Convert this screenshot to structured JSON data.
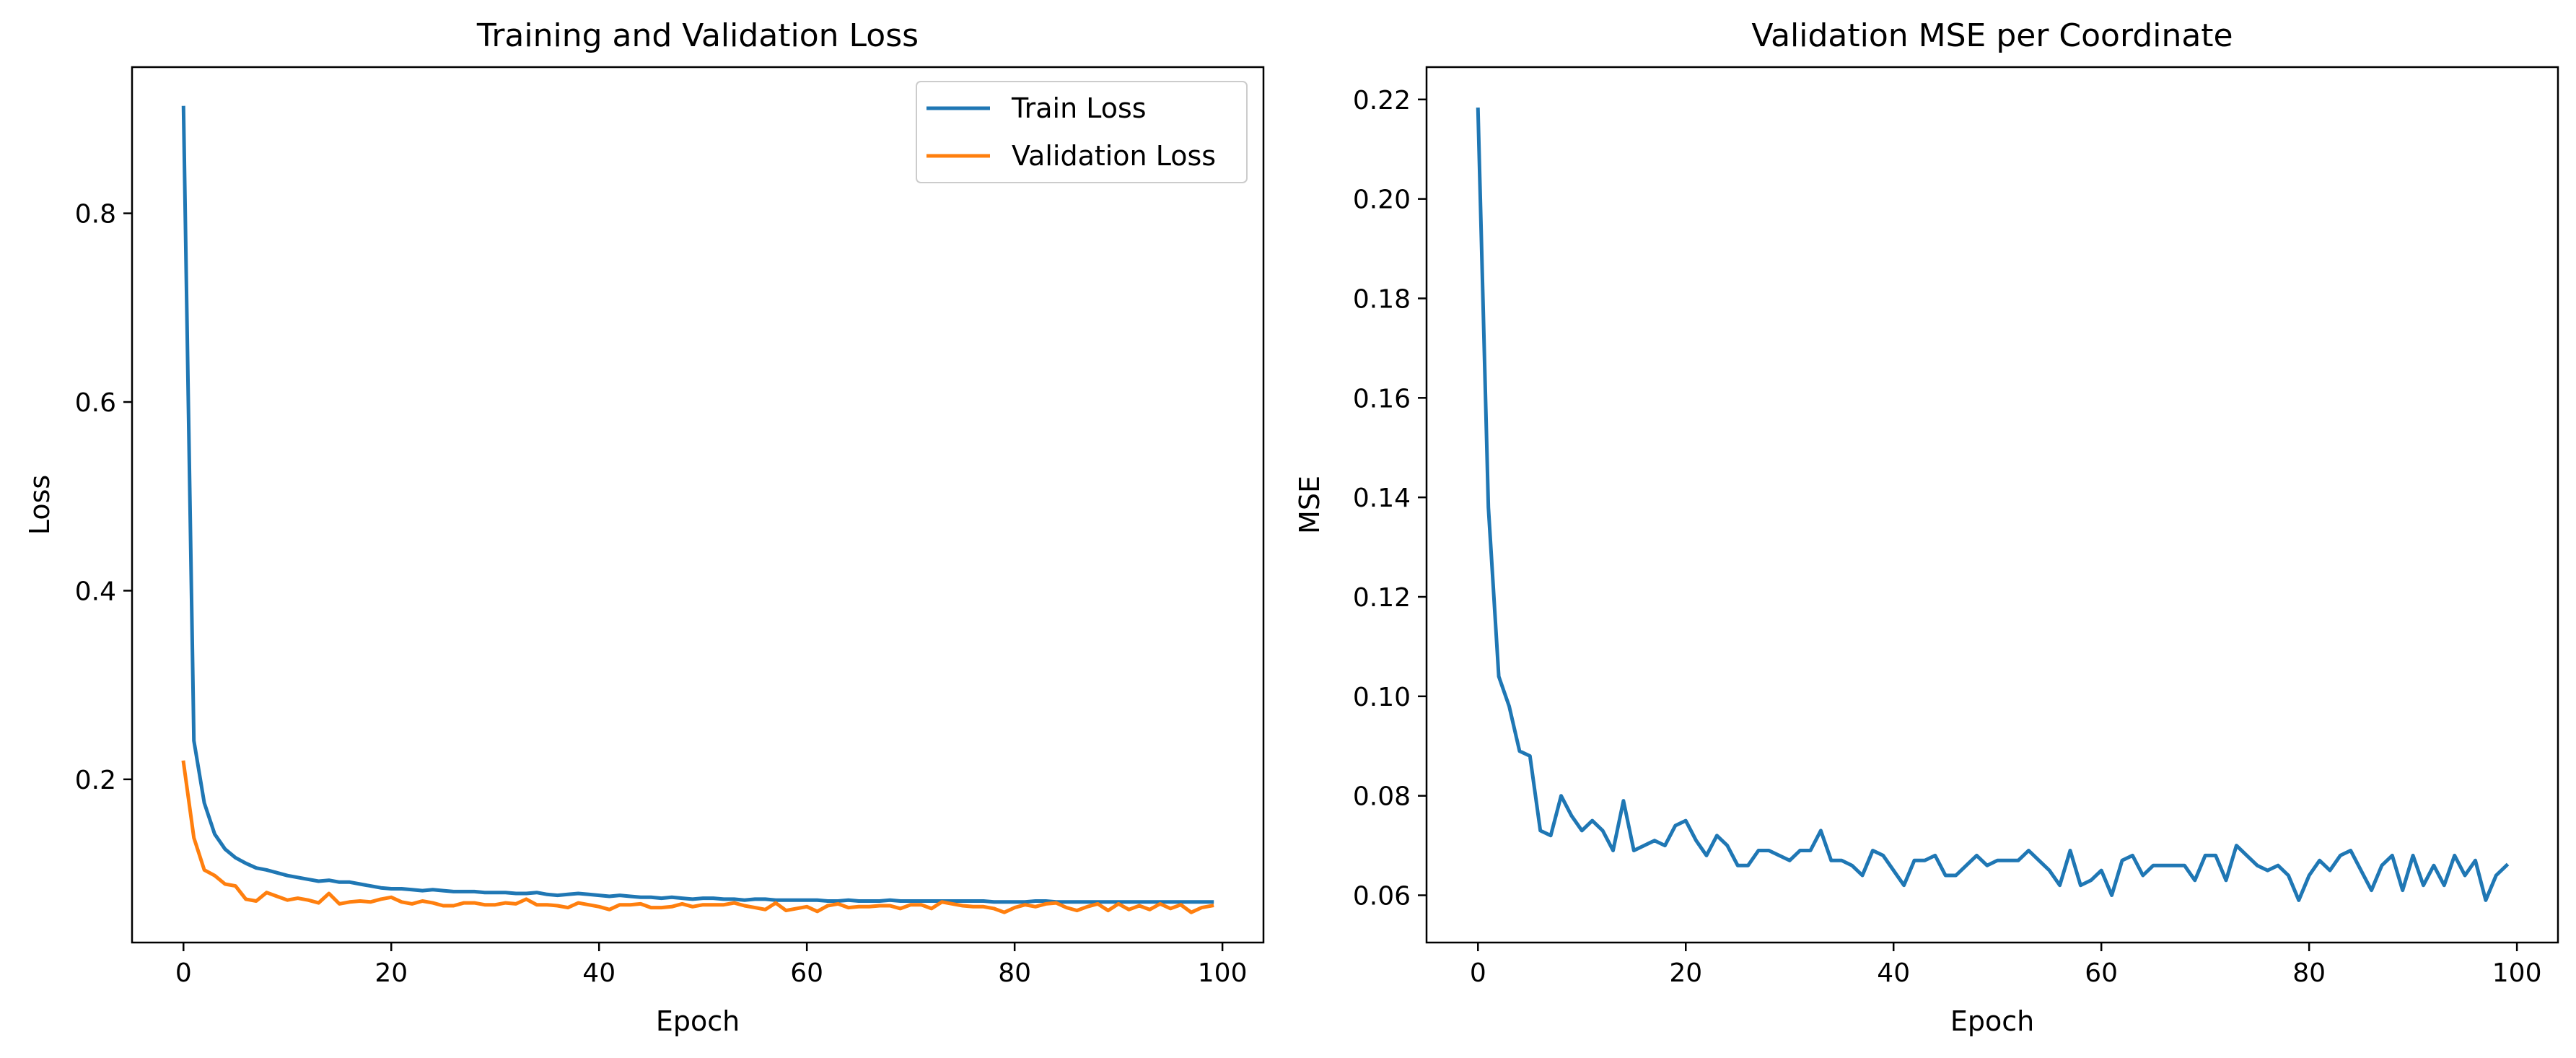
{
  "colors": {
    "train": "#1f77b4",
    "validation": "#ff7f0e",
    "mse": "#1f77b4"
  },
  "chart_data": [
    {
      "type": "line",
      "title": "Training and Validation Loss",
      "xlabel": "Epoch",
      "ylabel": "Loss",
      "xlim": [
        -4.95,
        103.95
      ],
      "ylim": [
        0.027,
        0.955
      ],
      "xticks": [
        0,
        20,
        40,
        60,
        80,
        100
      ],
      "yticks": [
        0.2,
        0.4,
        0.6,
        0.8
      ],
      "ytick_labels": [
        "0.2",
        "0.4",
        "0.6",
        "0.8"
      ],
      "grid": false,
      "legend": "top-right",
      "series": [
        {
          "name": "Train Loss",
          "values": [
            0.912,
            0.241,
            0.175,
            0.142,
            0.126,
            0.117,
            0.111,
            0.106,
            0.104,
            0.101,
            0.098,
            0.096,
            0.094,
            0.092,
            0.093,
            0.091,
            0.091,
            0.089,
            0.087,
            0.085,
            0.084,
            0.084,
            0.083,
            0.082,
            0.083,
            0.082,
            0.081,
            0.081,
            0.081,
            0.08,
            0.08,
            0.08,
            0.079,
            0.079,
            0.08,
            0.078,
            0.077,
            0.078,
            0.079,
            0.078,
            0.077,
            0.076,
            0.077,
            0.076,
            0.075,
            0.075,
            0.074,
            0.075,
            0.074,
            0.073,
            0.074,
            0.074,
            0.073,
            0.073,
            0.072,
            0.073,
            0.073,
            0.072,
            0.072,
            0.072,
            0.072,
            0.072,
            0.071,
            0.071,
            0.072,
            0.071,
            0.071,
            0.071,
            0.072,
            0.071,
            0.071,
            0.071,
            0.071,
            0.071,
            0.071,
            0.071,
            0.071,
            0.071,
            0.07,
            0.07,
            0.07,
            0.07,
            0.071,
            0.071,
            0.07,
            0.07,
            0.07,
            0.07,
            0.07,
            0.07,
            0.07,
            0.07,
            0.07,
            0.07,
            0.07,
            0.07,
            0.07,
            0.07,
            0.07,
            0.07
          ]
        },
        {
          "name": "Validation Loss",
          "values": [
            0.218,
            0.138,
            0.104,
            0.098,
            0.089,
            0.087,
            0.073,
            0.071,
            0.08,
            0.076,
            0.072,
            0.074,
            0.072,
            0.069,
            0.079,
            0.068,
            0.07,
            0.071,
            0.07,
            0.073,
            0.075,
            0.07,
            0.068,
            0.071,
            0.069,
            0.066,
            0.066,
            0.069,
            0.069,
            0.067,
            0.067,
            0.069,
            0.068,
            0.073,
            0.067,
            0.067,
            0.066,
            0.064,
            0.069,
            0.067,
            0.065,
            0.062,
            0.067,
            0.067,
            0.068,
            0.064,
            0.064,
            0.065,
            0.068,
            0.065,
            0.067,
            0.067,
            0.067,
            0.069,
            0.066,
            0.064,
            0.062,
            0.069,
            0.061,
            0.063,
            0.065,
            0.06,
            0.066,
            0.068,
            0.064,
            0.065,
            0.065,
            0.066,
            0.066,
            0.063,
            0.067,
            0.067,
            0.063,
            0.07,
            0.068,
            0.066,
            0.065,
            0.065,
            0.063,
            0.059,
            0.064,
            0.067,
            0.065,
            0.068,
            0.069,
            0.064,
            0.061,
            0.065,
            0.068,
            0.061,
            0.068,
            0.062,
            0.066,
            0.062,
            0.068,
            0.063,
            0.067,
            0.059,
            0.064,
            0.066
          ]
        }
      ]
    },
    {
      "type": "line",
      "title": "Validation MSE per Coordinate",
      "xlabel": "Epoch",
      "ylabel": "MSE",
      "xlim": [
        -4.95,
        103.95
      ],
      "ylim": [
        0.0505,
        0.2265
      ],
      "xticks": [
        0,
        20,
        40,
        60,
        80,
        100
      ],
      "yticks": [
        0.06,
        0.08,
        0.1,
        0.12,
        0.14,
        0.16,
        0.18,
        0.2,
        0.22
      ],
      "ytick_labels": [
        "0.06",
        "0.08",
        "0.10",
        "0.12",
        "0.14",
        "0.16",
        "0.18",
        "0.20",
        "0.22"
      ],
      "grid": false,
      "series": [
        {
          "values": [
            0.218,
            0.138,
            0.104,
            0.098,
            0.089,
            0.088,
            0.073,
            0.072,
            0.08,
            0.076,
            0.073,
            0.075,
            0.073,
            0.069,
            0.079,
            0.069,
            0.07,
            0.071,
            0.07,
            0.074,
            0.075,
            0.071,
            0.068,
            0.072,
            0.07,
            0.066,
            0.066,
            0.069,
            0.069,
            0.068,
            0.067,
            0.069,
            0.069,
            0.073,
            0.067,
            0.067,
            0.066,
            0.064,
            0.069,
            0.068,
            0.065,
            0.062,
            0.067,
            0.067,
            0.068,
            0.064,
            0.064,
            0.066,
            0.068,
            0.066,
            0.067,
            0.067,
            0.067,
            0.069,
            0.067,
            0.065,
            0.062,
            0.069,
            0.062,
            0.063,
            0.065,
            0.06,
            0.067,
            0.068,
            0.064,
            0.066,
            0.066,
            0.066,
            0.066,
            0.063,
            0.068,
            0.068,
            0.063,
            0.07,
            0.068,
            0.066,
            0.065,
            0.066,
            0.064,
            0.059,
            0.064,
            0.067,
            0.065,
            0.068,
            0.069,
            0.065,
            0.061,
            0.066,
            0.068,
            0.061,
            0.068,
            0.062,
            0.066,
            0.062,
            0.068,
            0.064,
            0.067,
            0.059,
            0.064,
            0.066
          ]
        }
      ]
    }
  ]
}
